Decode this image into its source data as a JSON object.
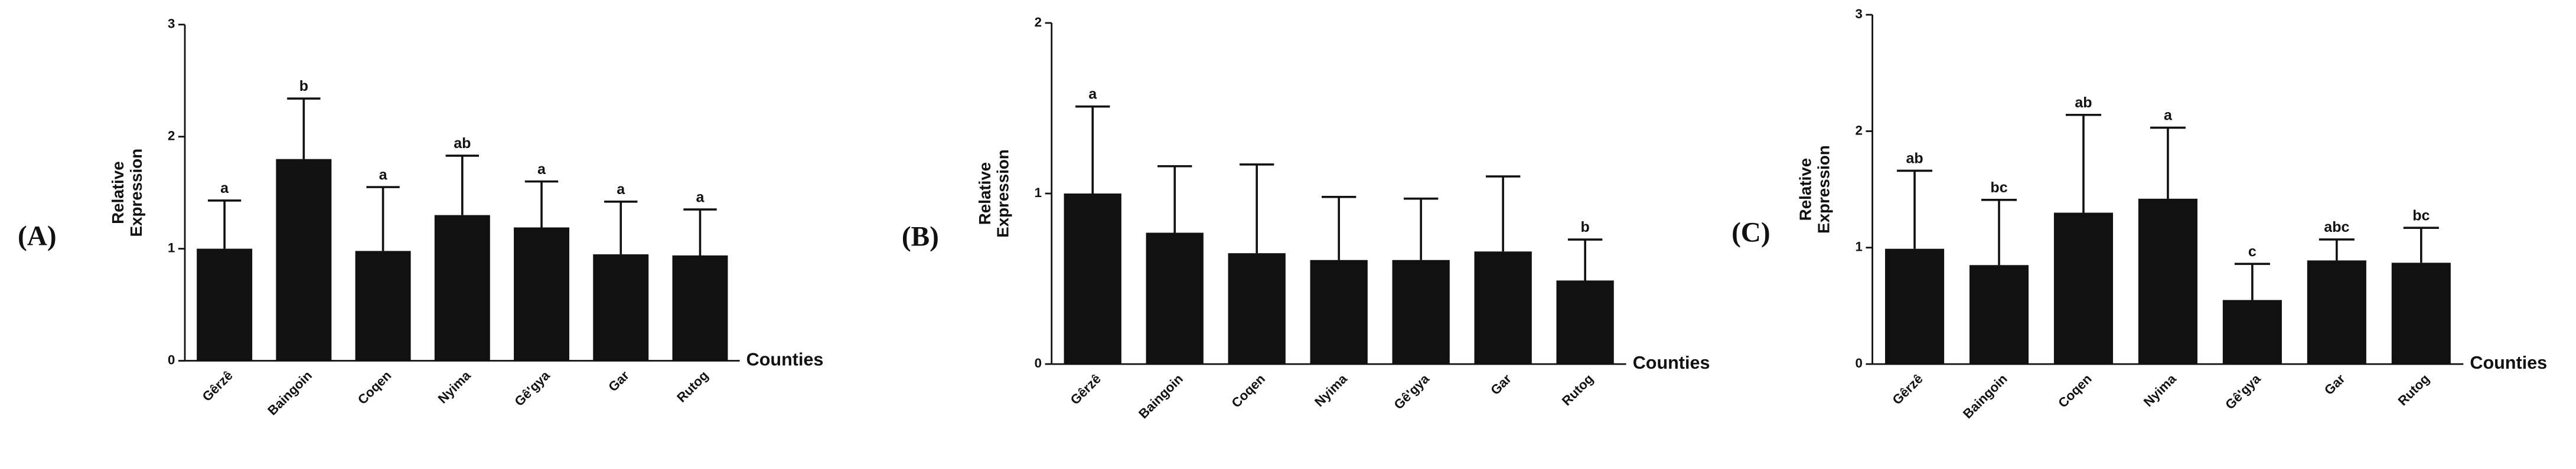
{
  "chart_data": [
    {
      "type": "bar",
      "panel": "(A)",
      "ylabel": [
        "Relative",
        "Expression"
      ],
      "xlabel": "Counties",
      "categories": [
        "Gêrzê",
        "Baingoin",
        "Coqen",
        "Nyima",
        "Gê'gya",
        "Gar",
        "Rutog"
      ],
      "values": [
        1.0,
        1.8,
        0.98,
        1.3,
        1.19,
        0.95,
        0.94
      ],
      "errors": [
        0.43,
        0.54,
        0.57,
        0.53,
        0.41,
        0.47,
        0.41
      ],
      "annotations": [
        "a",
        "b",
        "a",
        "ab",
        "a",
        "a",
        "a"
      ],
      "color": "#111111",
      "ylim": [
        0,
        3
      ],
      "yticks": [
        0,
        1,
        2,
        3
      ]
    },
    {
      "type": "bar",
      "panel": "(B)",
      "ylabel": [
        "Relative",
        "Expression"
      ],
      "xlabel": "Counties",
      "categories": [
        "Gêrzê",
        "Baingoin",
        "Coqen",
        "Nyima",
        "Gê'gya",
        "Gar",
        "Rutog"
      ],
      "values": [
        1.0,
        0.77,
        0.65,
        0.61,
        0.61,
        0.66,
        0.49
      ],
      "errors": [
        0.51,
        0.39,
        0.52,
        0.37,
        0.36,
        0.44,
        0.24
      ],
      "annotations": [
        "a",
        null,
        null,
        null,
        null,
        null,
        "b"
      ],
      "color": "#111111",
      "ylim": [
        0,
        2
      ],
      "yticks": [
        0,
        1,
        2
      ]
    },
    {
      "type": "bar",
      "panel": "(C)",
      "ylabel": [
        "Relative",
        "Expression"
      ],
      "xlabel": "Counties",
      "categories": [
        "Gêrzê",
        "Baingoin",
        "Coqen",
        "Nyima",
        "Gê'gya",
        "Gar",
        "Rutog"
      ],
      "values": [
        0.99,
        0.85,
        1.3,
        1.42,
        0.55,
        0.89,
        0.87
      ],
      "errors": [
        0.67,
        0.56,
        0.84,
        0.61,
        0.31,
        0.18,
        0.3
      ],
      "annotations": [
        "ab",
        "bc",
        "ab",
        "a",
        "c",
        "abc",
        "bc"
      ],
      "color": "#111111",
      "ylim": [
        0,
        3
      ],
      "yticks": [
        0,
        1,
        2,
        3
      ]
    }
  ]
}
